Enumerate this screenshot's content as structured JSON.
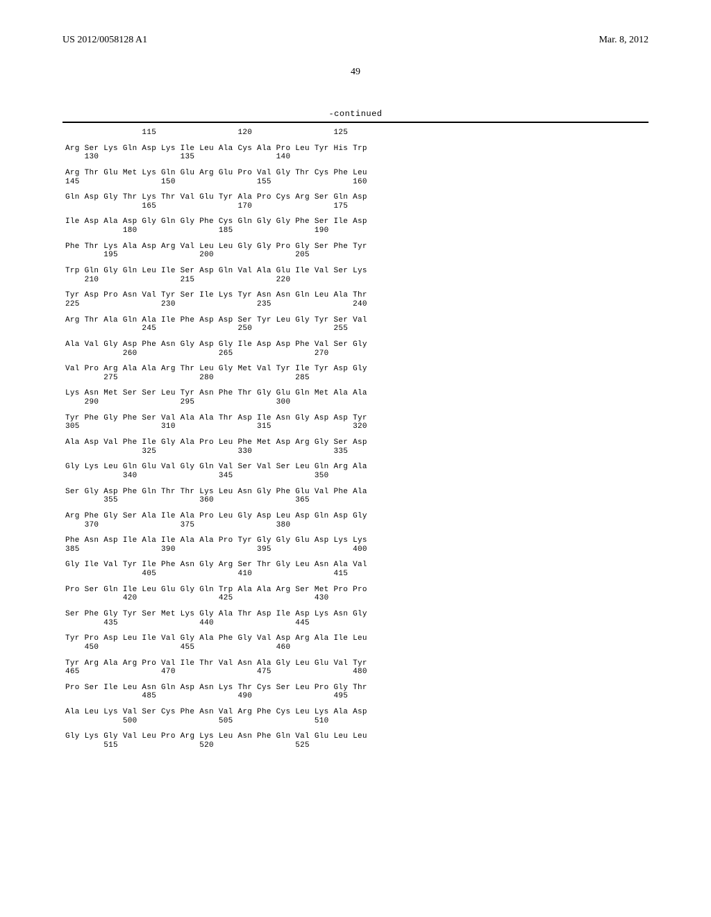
{
  "header": {
    "doc_number": "US 2012/0058128 A1",
    "date": "Mar. 8, 2012"
  },
  "page_number": "49",
  "continued_label": "-continued",
  "sequence": {
    "rows": [
      {
        "aa": "                115                 120                 125",
        "nums": ""
      },
      {
        "aa": "Arg Ser Lys Gln Asp Lys Ile Leu Ala Cys Ala Pro Leu Tyr His Trp",
        "nums": "    130                 135                 140"
      },
      {
        "aa": "Arg Thr Glu Met Lys Gln Glu Arg Glu Pro Val Gly Thr Cys Phe Leu",
        "nums": "145                 150                 155                 160"
      },
      {
        "aa": "Gln Asp Gly Thr Lys Thr Val Glu Tyr Ala Pro Cys Arg Ser Gln Asp",
        "nums": "                165                 170                 175"
      },
      {
        "aa": "Ile Asp Ala Asp Gly Gln Gly Phe Cys Gln Gly Gly Phe Ser Ile Asp",
        "nums": "            180                 185                 190"
      },
      {
        "aa": "Phe Thr Lys Ala Asp Arg Val Leu Leu Gly Gly Pro Gly Ser Phe Tyr",
        "nums": "        195                 200                 205"
      },
      {
        "aa": "Trp Gln Gly Gln Leu Ile Ser Asp Gln Val Ala Glu Ile Val Ser Lys",
        "nums": "    210                 215                 220"
      },
      {
        "aa": "Tyr Asp Pro Asn Val Tyr Ser Ile Lys Tyr Asn Asn Gln Leu Ala Thr",
        "nums": "225                 230                 235                 240"
      },
      {
        "aa": "Arg Thr Ala Gln Ala Ile Phe Asp Asp Ser Tyr Leu Gly Tyr Ser Val",
        "nums": "                245                 250                 255"
      },
      {
        "aa": "Ala Val Gly Asp Phe Asn Gly Asp Gly Ile Asp Asp Phe Val Ser Gly",
        "nums": "            260                 265                 270"
      },
      {
        "aa": "Val Pro Arg Ala Ala Arg Thr Leu Gly Met Val Tyr Ile Tyr Asp Gly",
        "nums": "        275                 280                 285"
      },
      {
        "aa": "Lys Asn Met Ser Ser Leu Tyr Asn Phe Thr Gly Glu Gln Met Ala Ala",
        "nums": "    290                 295                 300"
      },
      {
        "aa": "Tyr Phe Gly Phe Ser Val Ala Ala Thr Asp Ile Asn Gly Asp Asp Tyr",
        "nums": "305                 310                 315                 320"
      },
      {
        "aa": "Ala Asp Val Phe Ile Gly Ala Pro Leu Phe Met Asp Arg Gly Ser Asp",
        "nums": "                325                 330                 335"
      },
      {
        "aa": "Gly Lys Leu Gln Glu Val Gly Gln Val Ser Val Ser Leu Gln Arg Ala",
        "nums": "            340                 345                 350"
      },
      {
        "aa": "Ser Gly Asp Phe Gln Thr Thr Lys Leu Asn Gly Phe Glu Val Phe Ala",
        "nums": "        355                 360                 365"
      },
      {
        "aa": "Arg Phe Gly Ser Ala Ile Ala Pro Leu Gly Asp Leu Asp Gln Asp Gly",
        "nums": "    370                 375                 380"
      },
      {
        "aa": "Phe Asn Asp Ile Ala Ile Ala Ala Pro Tyr Gly Gly Glu Asp Lys Lys",
        "nums": "385                 390                 395                 400"
      },
      {
        "aa": "Gly Ile Val Tyr Ile Phe Asn Gly Arg Ser Thr Gly Leu Asn Ala Val",
        "nums": "                405                 410                 415"
      },
      {
        "aa": "Pro Ser Gln Ile Leu Glu Gly Gln Trp Ala Ala Arg Ser Met Pro Pro",
        "nums": "            420                 425                 430"
      },
      {
        "aa": "Ser Phe Gly Tyr Ser Met Lys Gly Ala Thr Asp Ile Asp Lys Asn Gly",
        "nums": "        435                 440                 445"
      },
      {
        "aa": "Tyr Pro Asp Leu Ile Val Gly Ala Phe Gly Val Asp Arg Ala Ile Leu",
        "nums": "    450                 455                 460"
      },
      {
        "aa": "Tyr Arg Ala Arg Pro Val Ile Thr Val Asn Ala Gly Leu Glu Val Tyr",
        "nums": "465                 470                 475                 480"
      },
      {
        "aa": "Pro Ser Ile Leu Asn Gln Asp Asn Lys Thr Cys Ser Leu Pro Gly Thr",
        "nums": "                485                 490                 495"
      },
      {
        "aa": "Ala Leu Lys Val Ser Cys Phe Asn Val Arg Phe Cys Leu Lys Ala Asp",
        "nums": "            500                 505                 510"
      },
      {
        "aa": "Gly Lys Gly Val Leu Pro Arg Lys Leu Asn Phe Gln Val Glu Leu Leu",
        "nums": "        515                 520                 525"
      }
    ]
  }
}
